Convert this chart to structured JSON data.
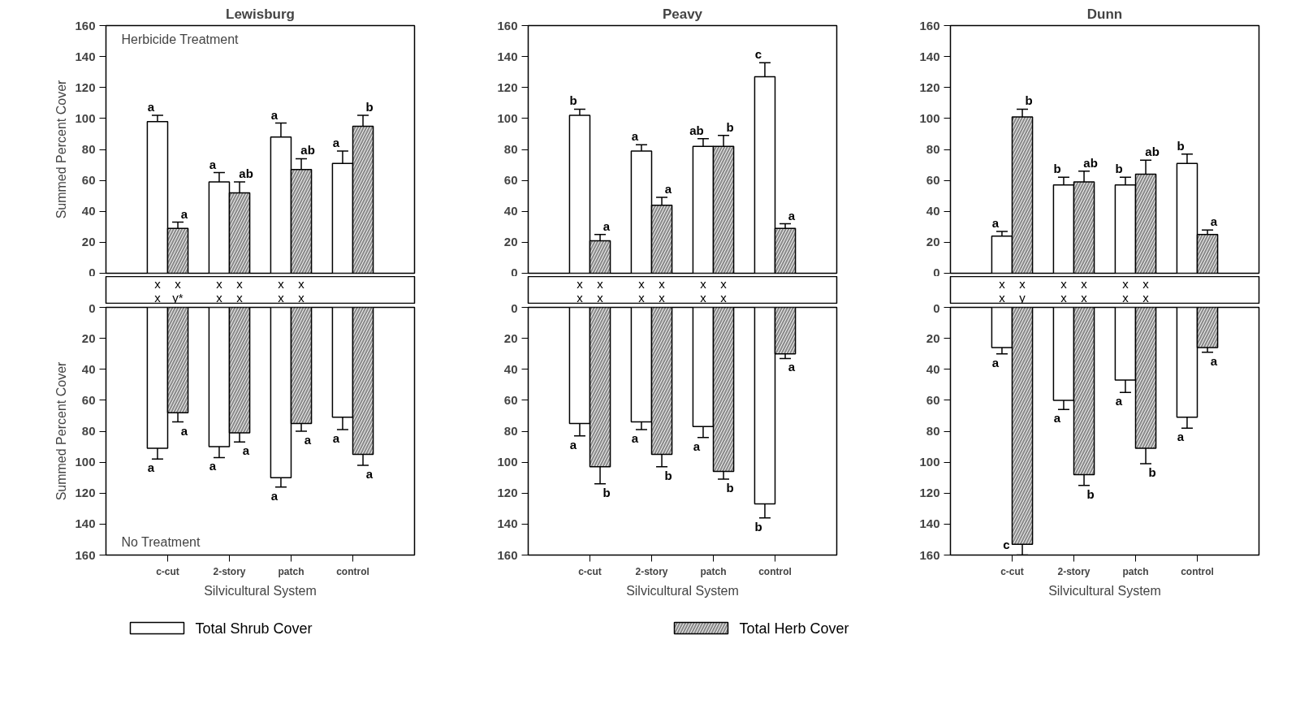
{
  "chart_data": [
    {
      "type": "bar",
      "title": "Lewisburg",
      "subtitle": "Herbicide Treatment",
      "ylabel": "Summed Percent Cover",
      "categories": [
        "c-cut",
        "2-story",
        "patch",
        "control"
      ],
      "ylim": [
        0,
        160
      ],
      "yticks": [
        0,
        20,
        40,
        60,
        80,
        100,
        120,
        140,
        160
      ],
      "tick_labels": "y",
      "legend": "bottom",
      "series": [
        {
          "name": "Total Shrub Cover",
          "color": "#ffffff",
          "values": [
            98,
            59,
            88,
            71
          ],
          "errors": [
            4,
            6,
            9,
            8
          ],
          "value_labels": [
            "a",
            "a",
            "a",
            "a"
          ]
        },
        {
          "name": "Total Herb Cover",
          "color": "#8a8a8a",
          "values": [
            29,
            52,
            67,
            95
          ],
          "errors": [
            4,
            7,
            7,
            7
          ],
          "value_labels": [
            "a",
            "ab",
            "ab",
            "b"
          ]
        }
      ],
      "annotations": [
        "x",
        "x",
        "x",
        "y*",
        "x",
        "x",
        "x",
        "x",
        "x",
        "x",
        "x",
        "x"
      ]
    },
    {
      "type": "bar",
      "title": "Peavy",
      "categories": [
        "c-cut",
        "2-story",
        "patch",
        "control"
      ],
      "ylim": [
        0,
        160
      ],
      "yticks": [
        0,
        20,
        40,
        60,
        80,
        100,
        120,
        140,
        160
      ],
      "tick_labels": "y",
      "series": [
        {
          "color": "#ffffff",
          "values": [
            102,
            79,
            82,
            127
          ],
          "errors": [
            4,
            4,
            5,
            9
          ],
          "value_labels": [
            "b",
            "a",
            "ab",
            "c"
          ]
        },
        {
          "color": "#8a8a8a",
          "values": [
            21,
            44,
            82,
            29
          ],
          "errors": [
            4,
            5,
            7,
            3
          ],
          "value_labels": [
            "a",
            "a",
            "b",
            "a"
          ]
        }
      ],
      "annotations": [
        "x",
        "x",
        "x",
        "x",
        "x",
        "x",
        "x",
        "x",
        "x",
        "x",
        "x",
        "x"
      ]
    },
    {
      "type": "bar",
      "title": "Dunn",
      "categories": [
        "c-cut",
        "2-story",
        "patch",
        "control"
      ],
      "ylim": [
        0,
        160
      ],
      "yticks": [
        0,
        20,
        40,
        60,
        80,
        100,
        120,
        140,
        160
      ],
      "tick_labels": "y",
      "series": [
        {
          "color": "#ffffff",
          "values": [
            24,
            57,
            57,
            71
          ],
          "errors": [
            3,
            5,
            5,
            6
          ],
          "value_labels": [
            "a",
            "b",
            "b",
            "b"
          ]
        },
        {
          "color": "#8a8a8a",
          "values": [
            101,
            59,
            64,
            25
          ],
          "errors": [
            5,
            7,
            9,
            3
          ],
          "value_labels": [
            "b",
            "ab",
            "ab",
            "a"
          ]
        }
      ],
      "annotations": [
        "x",
        "x",
        "x",
        "y",
        "x",
        "x",
        "x",
        "x",
        "x",
        "x",
        "x",
        "x"
      ]
    },
    {
      "type": "bar",
      "subtitle": "No Treatment",
      "ylabel": "Summed Percent Cover",
      "xlabel": "Silvicultural System",
      "categories": [
        "c-cut",
        "2-story",
        "patch",
        "control"
      ],
      "ylim": [
        160,
        0
      ],
      "yticks": [
        0,
        20,
        40,
        60,
        80,
        100,
        120,
        140,
        160
      ],
      "series": [
        {
          "color": "#ffffff",
          "values": [
            91,
            90,
            110,
            71
          ],
          "errors": [
            7,
            7,
            6,
            8
          ],
          "value_labels": [
            "a",
            "a",
            "a",
            "a"
          ]
        },
        {
          "color": "#8a8a8a",
          "values": [
            68,
            81,
            75,
            95
          ],
          "errors": [
            6,
            6,
            5,
            7
          ],
          "value_labels": [
            "a",
            "a",
            "a",
            "a"
          ]
        }
      ]
    },
    {
      "type": "bar",
      "xlabel": "Silvicultural System",
      "categories": [
        "c-cut",
        "2-story",
        "patch",
        "control"
      ],
      "ylim": [
        160,
        0
      ],
      "yticks": [
        0,
        20,
        40,
        60,
        80,
        100,
        120,
        140,
        160
      ],
      "series": [
        {
          "color": "#ffffff",
          "values": [
            75,
            74,
            77,
            127
          ],
          "errors": [
            8,
            5,
            7,
            9
          ],
          "value_labels": [
            "a",
            "a",
            "a",
            "b"
          ]
        },
        {
          "color": "#8a8a8a",
          "values": [
            103,
            95,
            106,
            30
          ],
          "errors": [
            11,
            8,
            5,
            3
          ],
          "value_labels": [
            "b",
            "b",
            "b",
            "a"
          ]
        }
      ]
    },
    {
      "type": "bar",
      "xlabel": "Silvicultural System",
      "categories": [
        "c-cut",
        "2-story",
        "patch",
        "control"
      ],
      "ylim": [
        160,
        0
      ],
      "yticks": [
        0,
        20,
        40,
        60,
        80,
        100,
        120,
        140,
        160
      ],
      "series": [
        {
          "color": "#ffffff",
          "values": [
            26,
            60,
            47,
            71
          ],
          "errors": [
            4,
            6,
            8,
            7
          ],
          "value_labels": [
            "a",
            "a",
            "a",
            "a"
          ]
        },
        {
          "color": "#8a8a8a",
          "values": [
            153,
            108,
            91,
            26
          ],
          "errors": [
            7,
            7,
            10,
            3
          ],
          "value_labels": [
            "c",
            "b",
            "b",
            "a"
          ]
        }
      ]
    }
  ]
}
